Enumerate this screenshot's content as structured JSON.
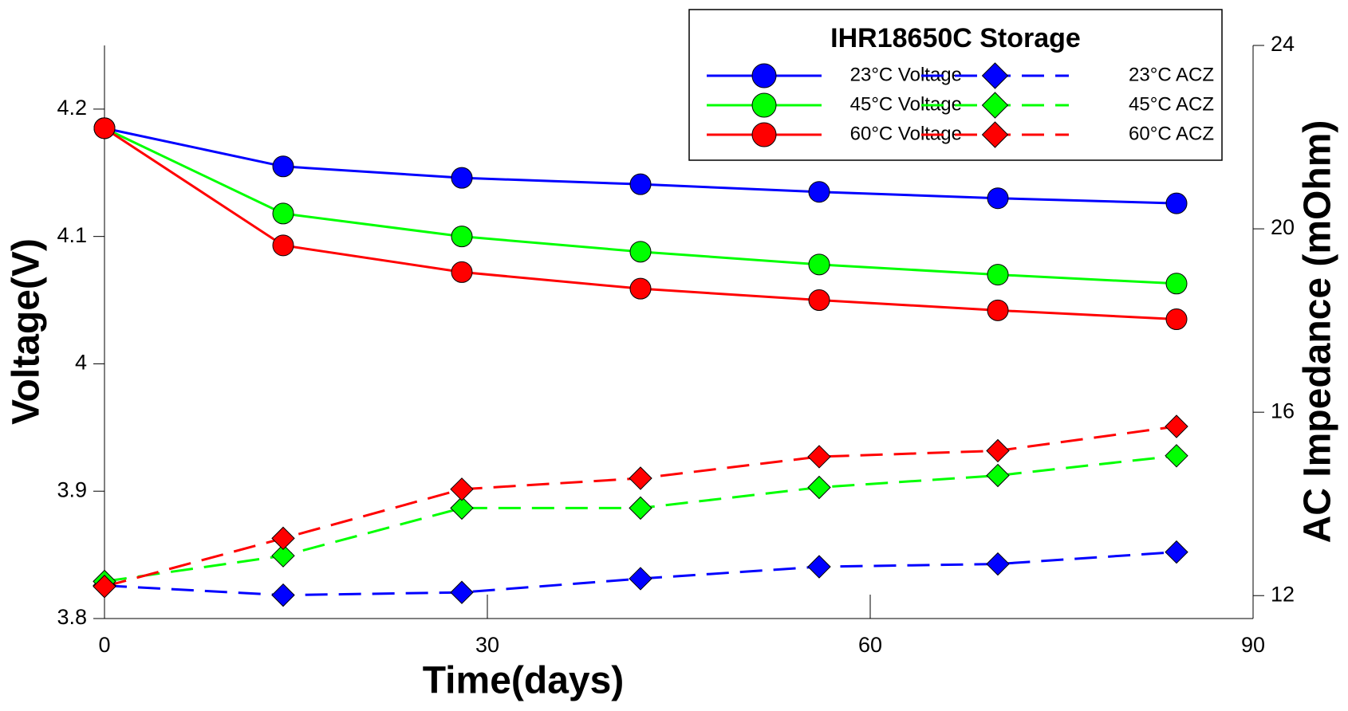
{
  "chart_data": {
    "type": "line",
    "title": "IHR18650C Storage",
    "x_label": "Time(days)",
    "y_label": "Voltage(V)",
    "y2_label": "AC Impedance (mOhm)",
    "x": [
      0,
      14,
      28,
      42,
      56,
      70,
      84
    ],
    "xlim": [
      0,
      90
    ],
    "xticks": [
      0,
      30,
      60,
      90
    ],
    "ylim": [
      3.8,
      4.25
    ],
    "yticks": [
      3.8,
      3.9,
      4,
      4.1,
      4.2
    ],
    "y2lim": [
      11.5,
      24
    ],
    "y2ticks": [
      12,
      16,
      20,
      24
    ],
    "legend": "upper right",
    "series": [
      {
        "name": "23°C Voltage",
        "color": "#0000ff",
        "marker": "circle",
        "dash": false,
        "values": [
          4.185,
          4.155,
          4.146,
          4.141,
          4.135,
          4.13,
          4.126
        ]
      },
      {
        "name": "45°C Voltage",
        "color": "#00ff00",
        "marker": "circle",
        "dash": false,
        "values": [
          4.185,
          4.118,
          4.1,
          4.088,
          4.078,
          4.07,
          4.063
        ]
      },
      {
        "name": "60°C Voltage",
        "color": "#ff0000",
        "marker": "circle",
        "dash": false,
        "values": [
          4.185,
          4.093,
          4.072,
          4.059,
          4.05,
          4.042,
          4.035
        ]
      },
      {
        "name": "23°C ACZ",
        "color": "#0000ff",
        "marker": "diamond",
        "dash": true,
        "axis": "y2",
        "values": [
          12.22,
          12.01,
          12.07,
          12.37,
          12.63,
          12.69,
          12.95
        ]
      },
      {
        "name": "45°C ACZ",
        "color": "#00ff00",
        "marker": "diamond",
        "dash": true,
        "axis": "y2",
        "values": [
          12.31,
          12.87,
          13.91,
          13.91,
          14.36,
          14.62,
          15.05
        ]
      },
      {
        "name": "60°C ACZ",
        "color": "#ff0000",
        "marker": "diamond",
        "dash": true,
        "axis": "y2",
        "values": [
          12.2,
          13.25,
          14.32,
          14.56,
          15.03,
          15.16,
          15.69
        ]
      }
    ]
  }
}
